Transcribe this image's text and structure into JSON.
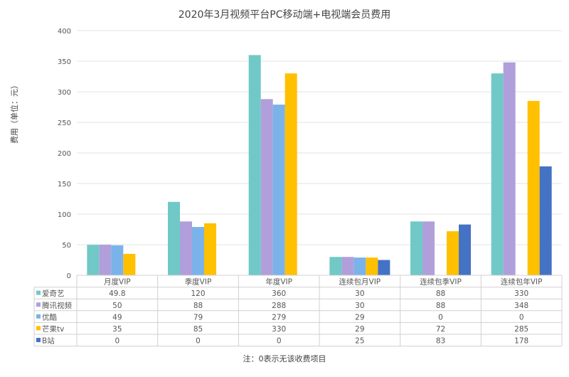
{
  "chart_data": {
    "type": "bar",
    "title": "2020年3月视频平台PC移动端+电视端会员费用",
    "ylabel": "费用（单位：元）",
    "ylim": [
      0,
      400
    ],
    "yticks": [
      0,
      50,
      100,
      150,
      200,
      250,
      300,
      350,
      400
    ],
    "grid": true,
    "legend": "data-table-below",
    "categories": [
      "月度VIP",
      "季度VIP",
      "年度VIP",
      "连续包月VIP",
      "连续包季VIP",
      "连续包年VIP"
    ],
    "series": [
      {
        "name": "爱奇艺",
        "color": "#70C9C6",
        "values": [
          49.8,
          120,
          360,
          30,
          88,
          330
        ]
      },
      {
        "name": "腾讯视频",
        "color": "#B09FDB",
        "values": [
          50,
          88,
          288,
          30,
          88,
          348
        ]
      },
      {
        "name": "优酷",
        "color": "#7AB3EA",
        "values": [
          49,
          79,
          279,
          29,
          0,
          0
        ]
      },
      {
        "name": "芒果tv",
        "color": "#FFC000",
        "values": [
          35,
          85,
          330,
          29,
          72,
          285
        ]
      },
      {
        "name": "B站",
        "color": "#4472C4",
        "values": [
          0,
          0,
          0,
          25,
          83,
          178
        ]
      }
    ],
    "note": "注：0表示无该收费项目"
  }
}
